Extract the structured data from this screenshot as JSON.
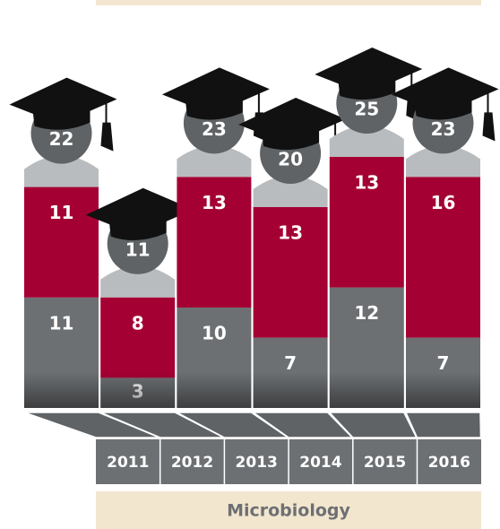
{
  "chart_data": {
    "type": "bar",
    "title": "Microbiology",
    "categories": [
      "2011",
      "2012",
      "2013",
      "2014",
      "2015",
      "2016"
    ],
    "series": [
      {
        "color": "#6d7073",
        "values": [
          11,
          3,
          10,
          7,
          12,
          7
        ]
      },
      {
        "color": "#a50034",
        "values": [
          11,
          8,
          13,
          13,
          13,
          16
        ]
      }
    ],
    "totals": [
      22,
      11,
      23,
      20,
      25,
      23
    ],
    "stacked": true
  }
}
